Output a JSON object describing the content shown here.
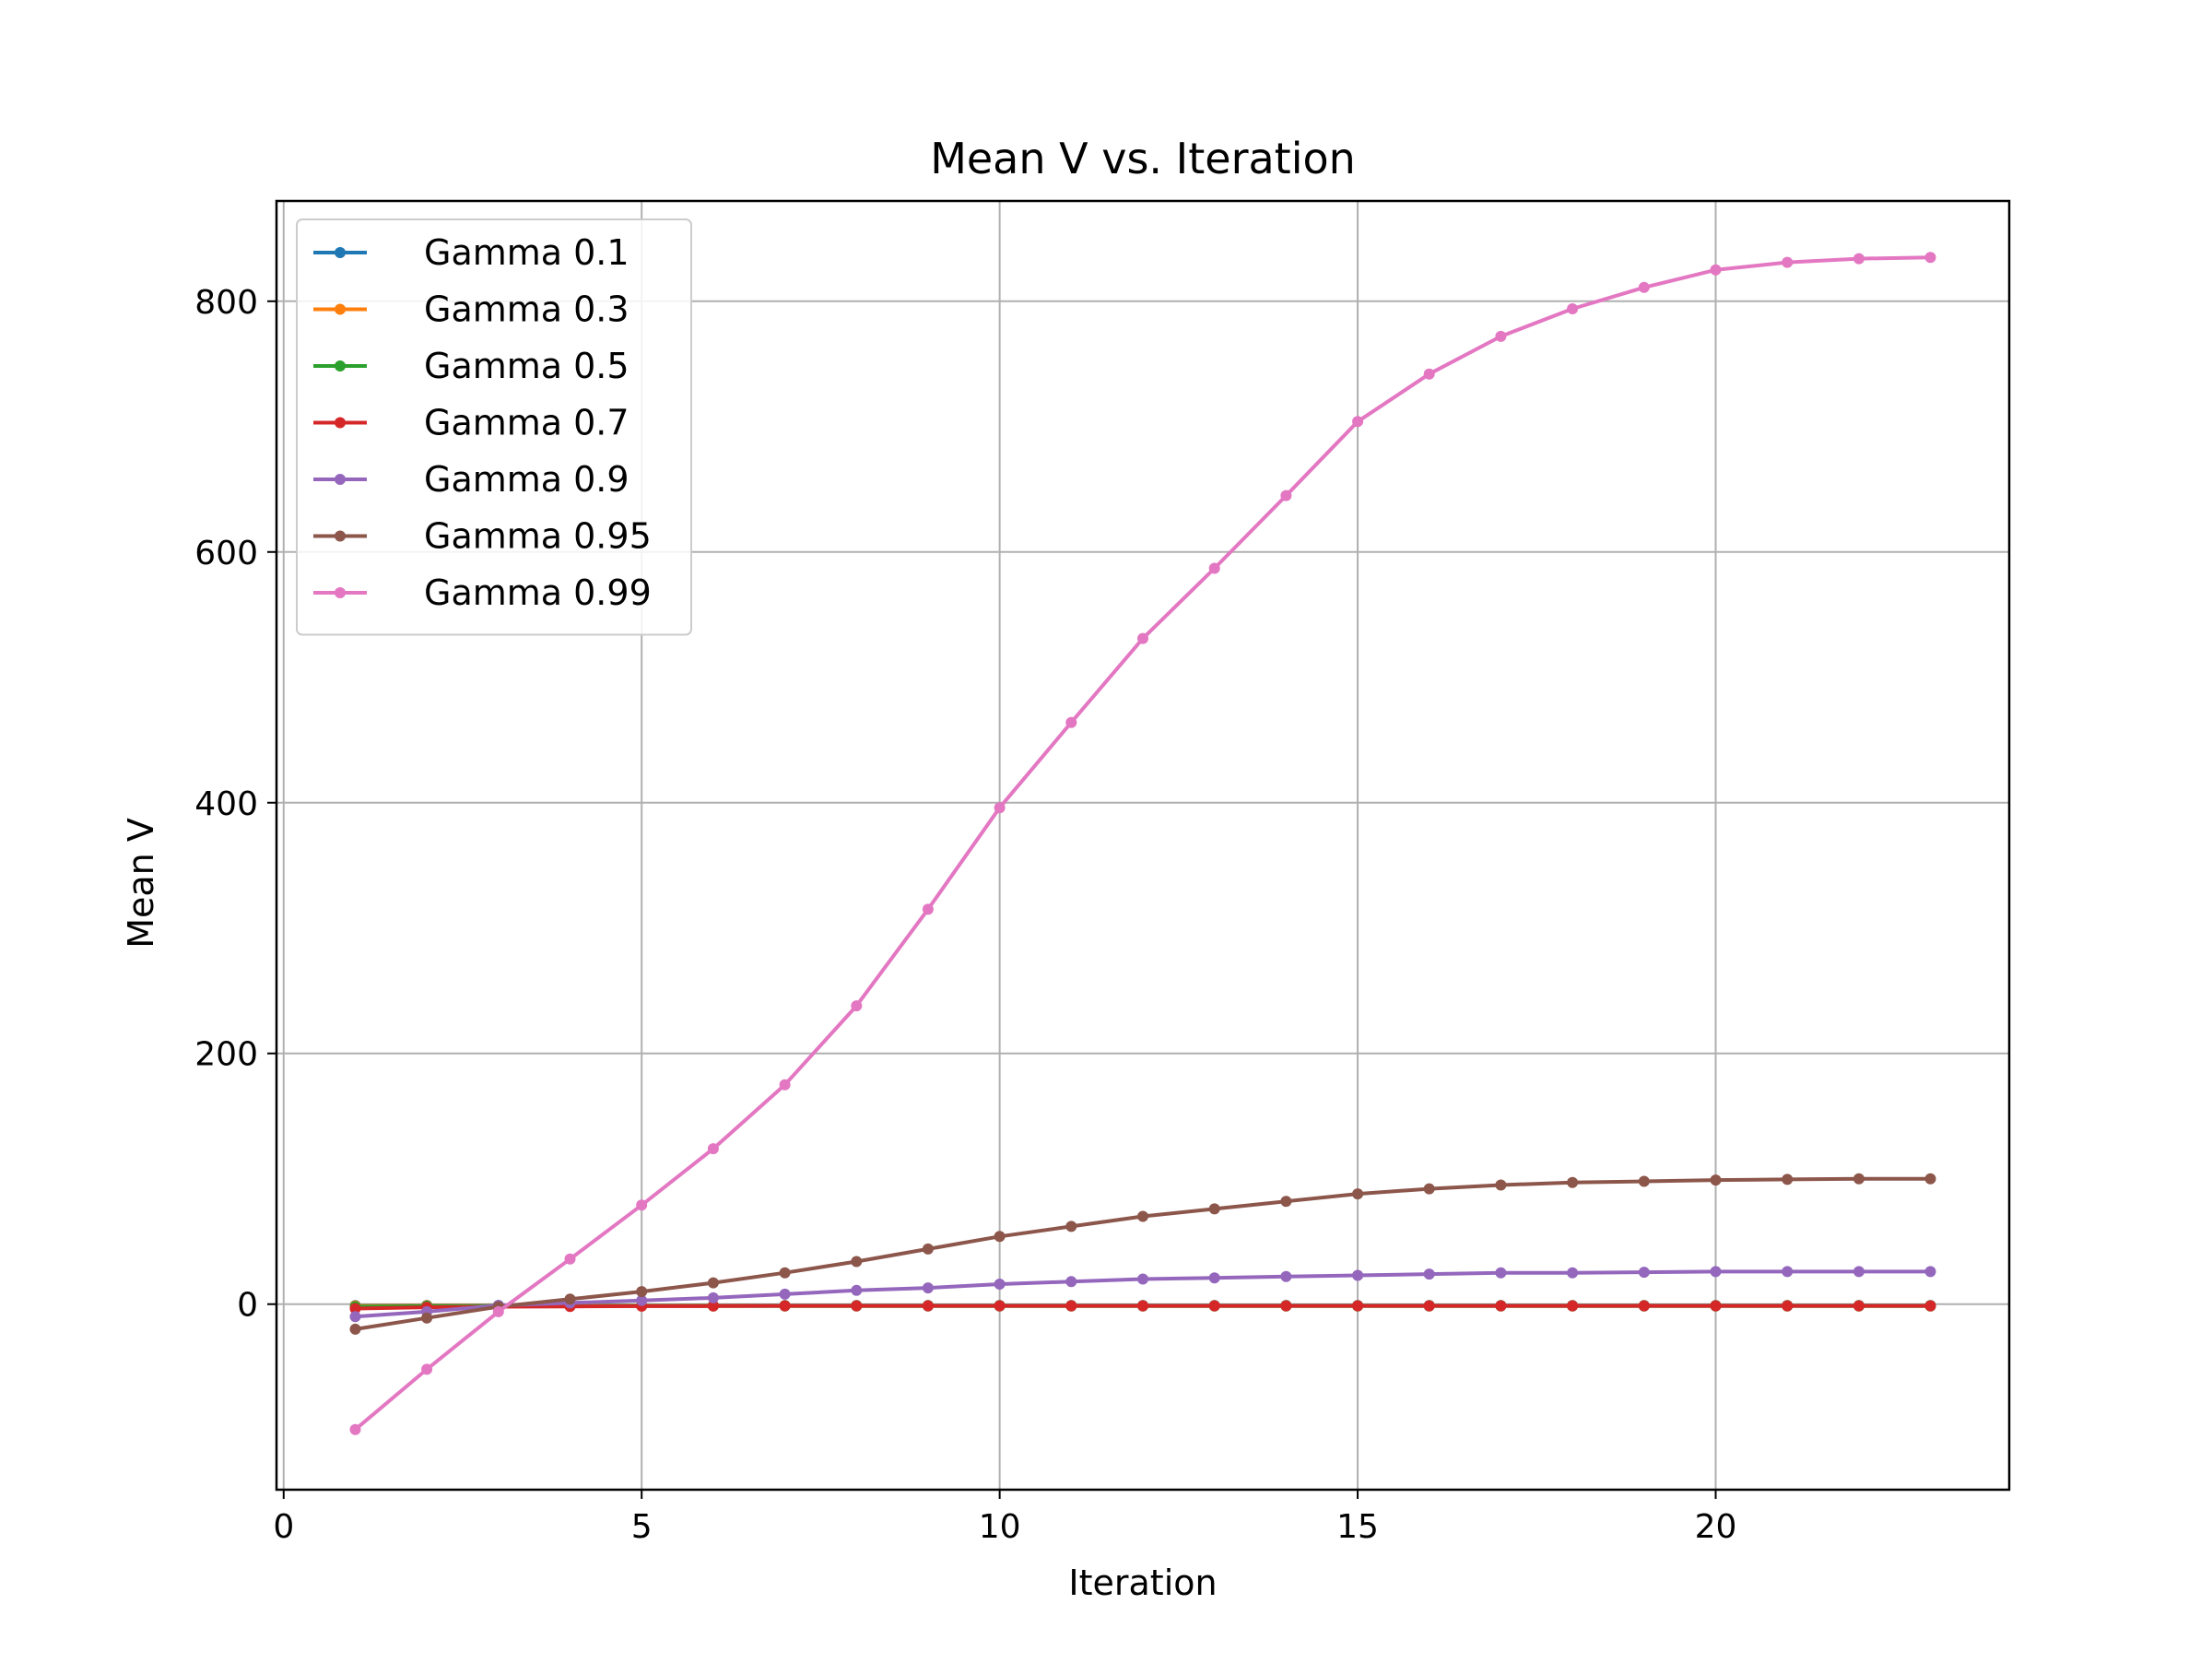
{
  "chart_data": {
    "type": "line",
    "title": "Mean V vs. Iteration",
    "xlabel": "Iteration",
    "ylabel": "Mean V",
    "xlim": [
      -0.1,
      24.1
    ],
    "ylim": [
      -148,
      880
    ],
    "xticks": [
      0,
      5,
      10,
      15,
      20
    ],
    "yticks": [
      0,
      200,
      400,
      600,
      800
    ],
    "grid": true,
    "legend_position": "upper left",
    "x": [
      1,
      2,
      3,
      4,
      5,
      6,
      7,
      8,
      9,
      10,
      11,
      12,
      13,
      14,
      15,
      16,
      17,
      18,
      19,
      20,
      21,
      22,
      23
    ],
    "series": [
      {
        "name": "Gamma 0.1",
        "color": "#1f77b4",
        "values": [
          -1.1,
          -1.0,
          -1.0,
          -1.0,
          -1.0,
          -1.0,
          -1.0,
          -1.0,
          -1.0,
          -1.0,
          -1.0,
          -1.0,
          -1.0,
          -1.0,
          -1.0,
          -1.0,
          -1.0,
          -1.0,
          -1.0,
          -1.0,
          -1.0,
          -1.0,
          -1.0
        ]
      },
      {
        "name": "Gamma 0.3",
        "color": "#ff7f0e",
        "values": [
          -1.4,
          -1.2,
          -1.2,
          -1.2,
          -1.2,
          -1.2,
          -1.2,
          -1.2,
          -1.2,
          -1.2,
          -1.2,
          -1.2,
          -1.2,
          -1.2,
          -1.2,
          -1.2,
          -1.2,
          -1.2,
          -1.2,
          -1.2,
          -1.2,
          -1.2,
          -1.2
        ]
      },
      {
        "name": "Gamma 0.5",
        "color": "#2ca02c",
        "values": [
          -2.0,
          -1.6,
          -1.5,
          -1.5,
          -1.5,
          -1.5,
          -1.5,
          -1.5,
          -1.5,
          -1.5,
          -1.5,
          -1.5,
          -1.5,
          -1.5,
          -1.5,
          -1.5,
          -1.5,
          -1.5,
          -1.5,
          -1.5,
          -1.5,
          -1.5,
          -1.5
        ]
      },
      {
        "name": "Gamma 0.7",
        "color": "#d62728",
        "values": [
          -3.5,
          -2.5,
          -2.0,
          -1.8,
          -1.6,
          -1.5,
          -1.4,
          -1.4,
          -1.4,
          -1.4,
          -1.4,
          -1.4,
          -1.4,
          -1.4,
          -1.4,
          -1.4,
          -1.4,
          -1.4,
          -1.4,
          -1.4,
          -1.4,
          -1.4,
          -1.4
        ]
      },
      {
        "name": "Gamma 0.9",
        "color": "#9467bd",
        "values": [
          -10,
          -6,
          -1,
          1,
          3,
          5,
          8,
          11,
          13,
          16,
          18,
          20,
          21,
          22,
          23,
          24,
          25,
          25,
          25.5,
          26,
          26,
          26,
          26
        ]
      },
      {
        "name": "Gamma 0.95",
        "color": "#8c564b",
        "values": [
          -20,
          -11,
          -2,
          4,
          10,
          17,
          25,
          34,
          44,
          54,
          62,
          70,
          76,
          82,
          88,
          92,
          95,
          97,
          98,
          99,
          99.5,
          100,
          100
        ]
      },
      {
        "name": "Gamma 0.99",
        "color": "#e377c2",
        "values": [
          -100,
          -52,
          -6,
          36,
          79,
          124,
          175,
          238,
          315,
          396,
          464,
          531,
          587,
          645,
          704,
          742,
          772,
          794,
          811,
          825,
          831,
          834,
          835
        ]
      }
    ]
  }
}
